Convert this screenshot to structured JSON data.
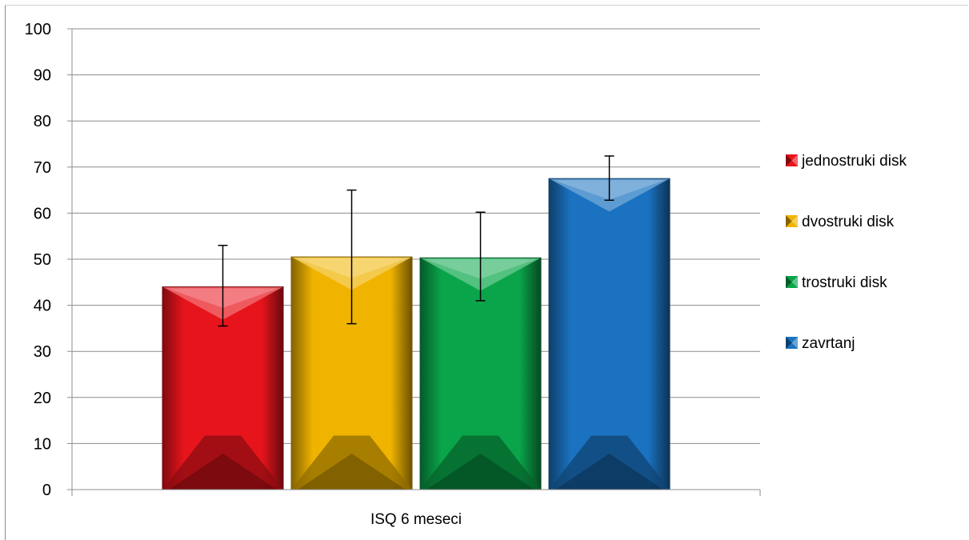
{
  "chart_data": {
    "type": "bar",
    "title": "",
    "xlabel": "",
    "ylabel": "",
    "categories": [
      "ISQ 6 meseci"
    ],
    "ylim": [
      0,
      100
    ],
    "yticks": [
      0,
      10,
      20,
      30,
      40,
      50,
      60,
      70,
      80,
      90,
      100
    ],
    "grid": true,
    "legend_position": "right",
    "series": [
      {
        "name": "jednostruki disk",
        "values": [
          44
        ],
        "error": [
          [
            35.5,
            53
          ]
        ],
        "color": "#e8141c"
      },
      {
        "name": "dvostruki disk",
        "values": [
          50.5
        ],
        "error": [
          [
            36,
            65
          ]
        ],
        "color": "#f0b400"
      },
      {
        "name": "trostruki disk",
        "values": [
          50.3
        ],
        "error": [
          [
            41,
            60.2
          ]
        ],
        "color": "#0aa54a"
      },
      {
        "name": "zavrtanj",
        "values": [
          67.5
        ],
        "error": [
          [
            62.8,
            72.4
          ]
        ],
        "color": "#1a72c0"
      }
    ]
  }
}
